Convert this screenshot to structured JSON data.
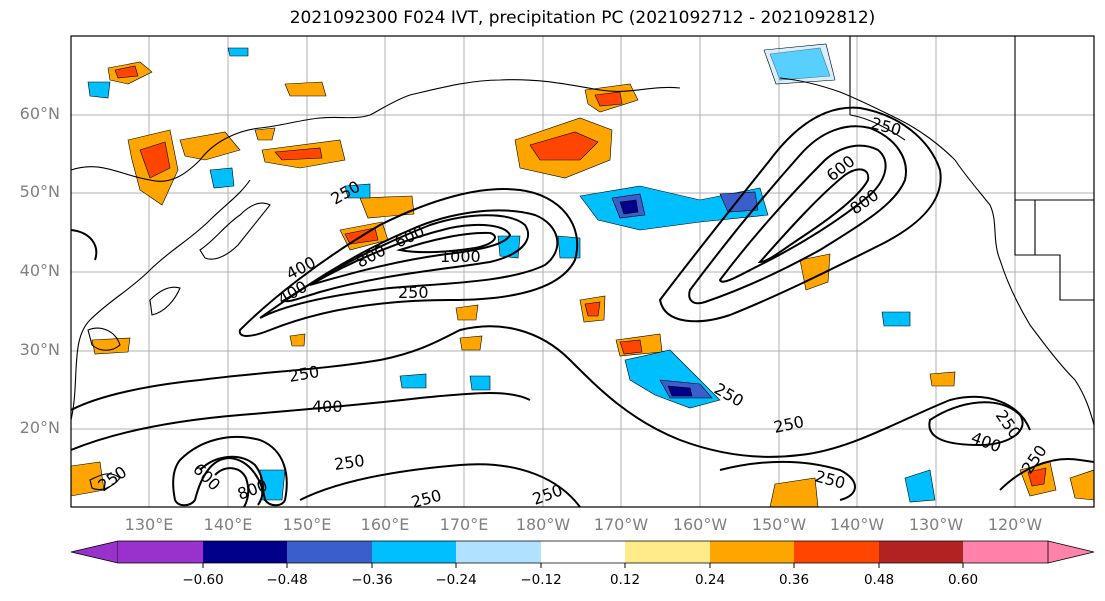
{
  "title": "2021092300 F024 IVT, precipitation PC (2021092712 - 2021092812)",
  "lat_labels": [
    "60°N",
    "50°N",
    "40°N",
    "30°N",
    "20°N"
  ],
  "lon_labels": [
    "130°E",
    "140°E",
    "150°E",
    "160°E",
    "170°E",
    "180°W",
    "170°W",
    "160°W",
    "150°W",
    "140°W",
    "130°W",
    "120°W"
  ],
  "contour_labels": [
    "250",
    "400",
    "600",
    "800",
    "1000",
    "250",
    "400",
    "800",
    "600",
    "250",
    "250",
    "400",
    "250",
    "250",
    "800",
    "600",
    "250",
    "250",
    "250",
    "250",
    "250",
    "250",
    "400",
    "250",
    "250",
    "600",
    "800",
    "400",
    "250"
  ],
  "colorbar": {
    "ticks": [
      "−0.60",
      "−0.48",
      "−0.36",
      "−0.24",
      "−0.12",
      "0.12",
      "0.24",
      "0.36",
      "0.48",
      "0.60"
    ],
    "colors": [
      "#9932cc",
      "#00008b",
      "#3a5fcd",
      "#00bfff",
      "#b0e2ff",
      "#ffffff",
      "#ffeb8a",
      "#ffa500",
      "#ff4500",
      "#b22222",
      "#ff82ab"
    ]
  }
}
